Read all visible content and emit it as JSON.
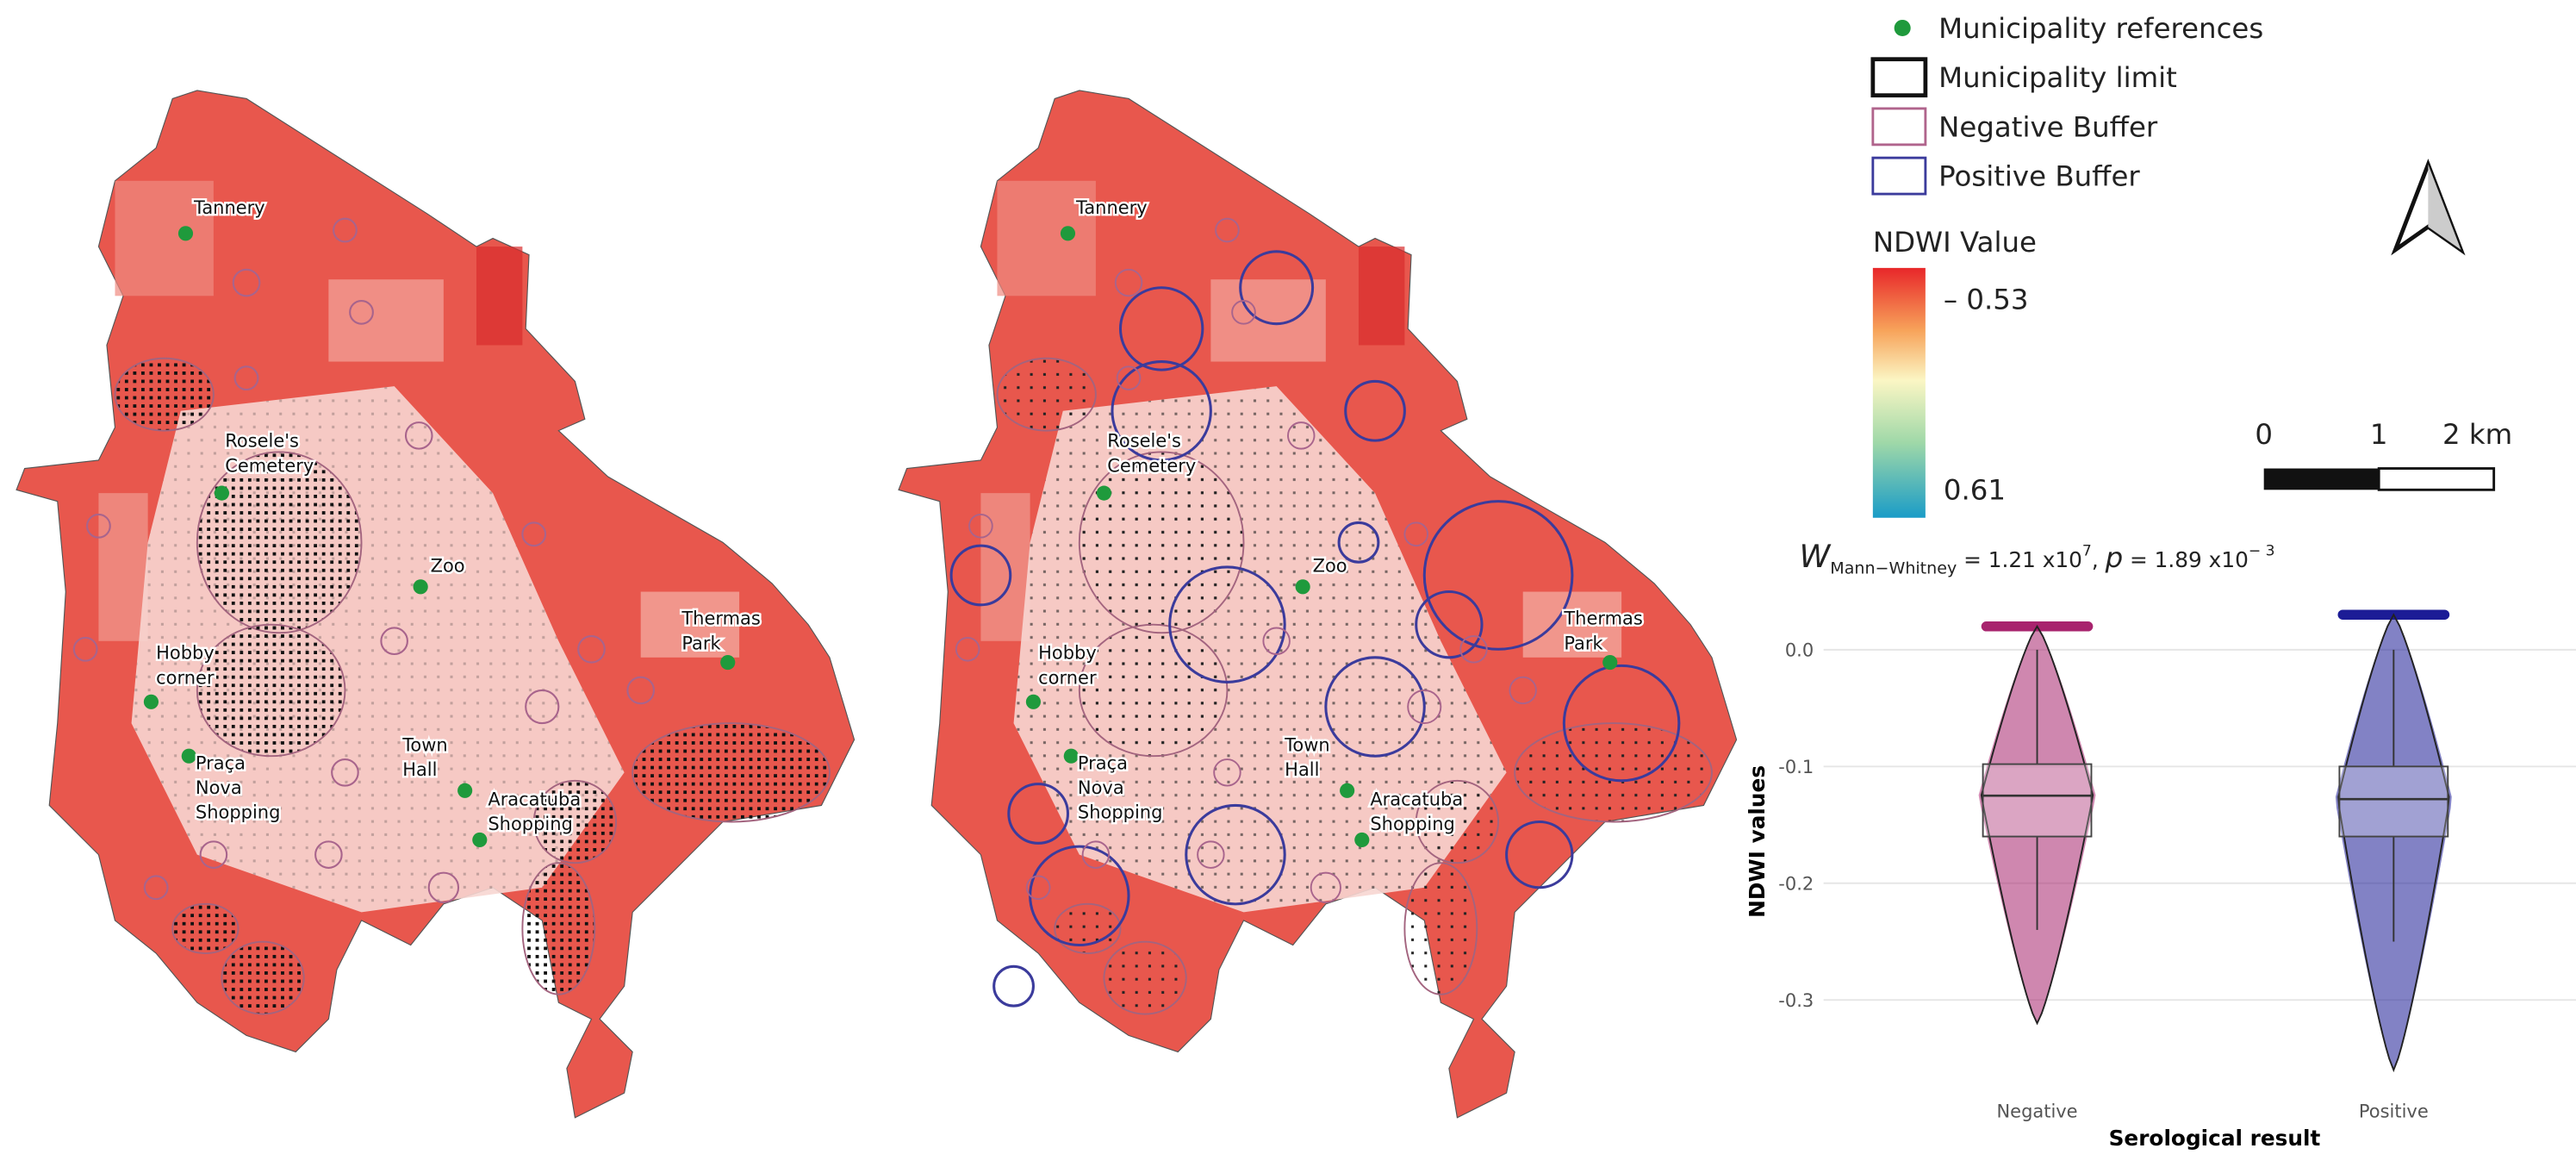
{
  "map_references": [
    {
      "lines": [
        "Tannery"
      ]
    },
    {
      "lines": [
        "Rosele's",
        "Cemetery"
      ]
    },
    {
      "lines": [
        "Zoo"
      ]
    },
    {
      "lines": [
        "Thermas",
        "Park"
      ]
    },
    {
      "lines": [
        "Hobby",
        "corner"
      ]
    },
    {
      "lines": [
        "Praça",
        "Nova",
        "Shopping"
      ]
    },
    {
      "lines": [
        "Town",
        "Hall"
      ]
    },
    {
      "lines": [
        "Aracatuba",
        "Shopping"
      ]
    }
  ],
  "legend": [
    "Municipality references",
    "Municipality limit",
    "Negative Buffer",
    "Positive Buffer"
  ],
  "ndwi_legend": {
    "title": "NDWI Value",
    "ticks": [
      {
        "value": -0.53,
        "label": "– 0.53"
      },
      {
        "value": 0.61,
        "label": "0.61"
      }
    ]
  },
  "scale_bar": {
    "ticks": [
      0,
      1,
      {
        "value": 2,
        "label": "2 km"
      }
    ]
  },
  "chart_data": {
    "type": "box",
    "title_parts": [
      "W",
      "Mann−Whitney",
      " = 1.21 x10",
      "7",
      ", ",
      "p",
      " = 1.89 x10",
      "− 3"
    ],
    "y_label": "NDWI values",
    "x_label": "Serological result",
    "categories": [
      "Negative",
      "Positive"
    ],
    "boxes": [
      {
        "color": "#a8246e",
        "min": -0.32,
        "whisker_low": -0.24,
        "q1": -0.16,
        "median": -0.125,
        "q3": -0.098,
        "whisker_high": 0.0,
        "max": 0.02
      },
      {
        "color": "#1c1c96",
        "min": -0.36,
        "whisker_low": -0.25,
        "q1": -0.16,
        "median": -0.128,
        "q3": -0.1,
        "whisker_high": 0.0,
        "max": 0.03
      }
    ],
    "ylim": [
      -0.36,
      0.03
    ],
    "yticks": [
      {
        "value": 0,
        "label": "0.0"
      },
      -0.1,
      -0.2,
      -0.3
    ],
    "grid": true
  }
}
